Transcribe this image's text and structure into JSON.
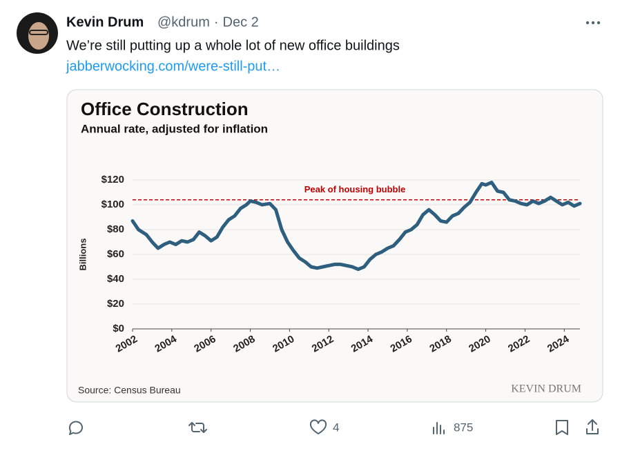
{
  "tweet": {
    "name": "Kevin Drum",
    "handle": "@kdrum",
    "date": "Dec 2",
    "text": "We’re still putting up a whole lot of new office buildings",
    "link": "jabberwocking.com/were-still-put…",
    "likes": 4,
    "views": 875
  },
  "chart_data": {
    "type": "line",
    "title": "Office Construction",
    "subtitle": "Annual rate, adjusted for inflation",
    "y_label": "Billions",
    "source": "Source: Census Bureau",
    "logo": "KEVIN DRUM",
    "color": "#2f5f7f",
    "x": [
      2002.0,
      2002.3,
      2002.7,
      2003.0,
      2003.3,
      2003.6,
      2003.9,
      2004.2,
      2004.5,
      2004.8,
      2005.1,
      2005.4,
      2005.7,
      2006.0,
      2006.3,
      2006.6,
      2006.9,
      2007.2,
      2007.5,
      2007.8,
      2008.0,
      2008.3,
      2008.6,
      2009.0,
      2009.3,
      2009.6,
      2009.9,
      2010.2,
      2010.5,
      2010.8,
      2011.1,
      2011.4,
      2011.7,
      2012.0,
      2012.3,
      2012.6,
      2012.9,
      2013.2,
      2013.5,
      2013.8,
      2014.1,
      2014.4,
      2014.7,
      2015.0,
      2015.3,
      2015.6,
      2015.9,
      2016.2,
      2016.5,
      2016.8,
      2017.1,
      2017.4,
      2017.7,
      2018.0,
      2018.3,
      2018.6,
      2018.9,
      2019.2,
      2019.5,
      2019.8,
      2020.0,
      2020.3,
      2020.6,
      2020.9,
      2021.2,
      2021.5,
      2021.8,
      2022.1,
      2022.4,
      2022.7,
      2023.0,
      2023.3,
      2023.6,
      2023.9,
      2024.2,
      2024.5,
      2024.8
    ],
    "values": [
      87,
      80,
      76,
      70,
      65,
      68,
      70,
      68,
      71,
      70,
      72,
      78,
      75,
      71,
      74,
      82,
      88,
      91,
      97,
      100,
      103,
      102,
      100,
      101,
      96,
      80,
      70,
      63,
      57,
      54,
      50,
      49,
      50,
      51,
      52,
      52,
      51,
      50,
      48,
      50,
      56,
      60,
      62,
      65,
      67,
      72,
      78,
      80,
      84,
      92,
      96,
      92,
      87,
      86,
      91,
      93,
      98,
      102,
      110,
      117,
      116,
      118,
      111,
      110,
      104,
      103,
      101,
      100,
      103,
      101,
      103,
      106,
      103,
      100,
      102,
      99,
      101
    ],
    "reference_line": {
      "value": 104,
      "label": "Peak of housing bubble",
      "color": "#c00000"
    },
    "xlim": [
      2002,
      2024.8
    ],
    "xticks": [
      2002,
      2004,
      2006,
      2008,
      2010,
      2012,
      2014,
      2016,
      2018,
      2020,
      2022,
      2024
    ],
    "ylim": [
      0,
      120
    ],
    "yticks": [
      {
        "value": 0,
        "label": "$0"
      },
      {
        "value": 20,
        "label": "$20"
      },
      {
        "value": 40,
        "label": "$40"
      },
      {
        "value": 60,
        "label": "$60"
      },
      {
        "value": 80,
        "label": "$80"
      },
      {
        "value": 100,
        "label": "$100"
      },
      {
        "value": 120,
        "label": "$120"
      }
    ],
    "grid": true
  }
}
